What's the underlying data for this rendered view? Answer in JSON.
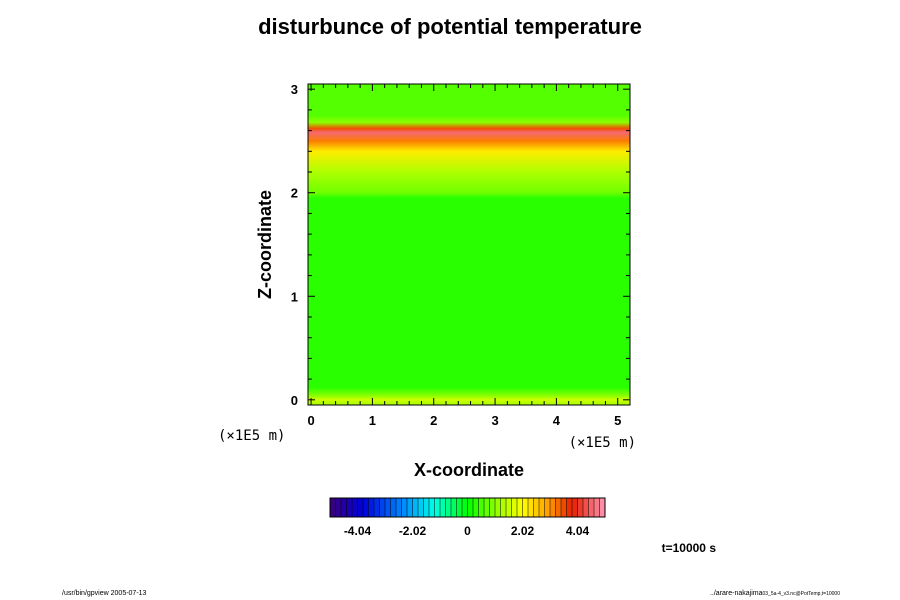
{
  "title": "disturbunce of potential temperature",
  "footer": {
    "left": "/usr/bin/gpview 2005-07-13",
    "right_main": "../arare-nakajima",
    "right_small": "03_5a-4_v3.nc@PotTemp,t=10000"
  },
  "time_label": "t=10000 s",
  "chart_data": {
    "type": "heatmap",
    "title": "disturbunce of potential temperature",
    "xlabel": "X-coordinate",
    "ylabel": "Z-coordinate",
    "x_unit": "(×1E5 m)",
    "y_unit": "(×1E5 m)",
    "xlim": [
      -0.05,
      5.2
    ],
    "ylim": [
      -0.05,
      3.05
    ],
    "xticks": [
      "0",
      "1",
      "2",
      "3",
      "4",
      "5"
    ],
    "yticks": [
      "0",
      "1",
      "2",
      "3"
    ],
    "field_varies_along": "z",
    "z_profile": [
      {
        "z": -0.05,
        "value": 1.2
      },
      {
        "z": 0.0,
        "value": 1.6
      },
      {
        "z": 0.05,
        "value": 0.9
      },
      {
        "z": 0.12,
        "value": 0.3
      },
      {
        "z": 1.0,
        "value": 0.3
      },
      {
        "z": 1.95,
        "value": 0.3
      },
      {
        "z": 2.0,
        "value": 0.8
      },
      {
        "z": 2.2,
        "value": 1.3
      },
      {
        "z": 2.4,
        "value": 2.2
      },
      {
        "z": 2.5,
        "value": 3.2
      },
      {
        "z": 2.58,
        "value": 4.6
      },
      {
        "z": 2.62,
        "value": 3.5
      },
      {
        "z": 2.68,
        "value": 1.0
      },
      {
        "z": 2.75,
        "value": 0.6
      },
      {
        "z": 3.05,
        "value": 0.6
      }
    ],
    "colorbar": {
      "min": -5.05,
      "max": 5.05,
      "labels": [
        "-4.04",
        "-2.02",
        "0",
        "2.02",
        "4.04"
      ],
      "label_values": [
        -4.04,
        -2.02,
        0,
        2.02,
        4.04
      ],
      "segments": 50
    }
  }
}
